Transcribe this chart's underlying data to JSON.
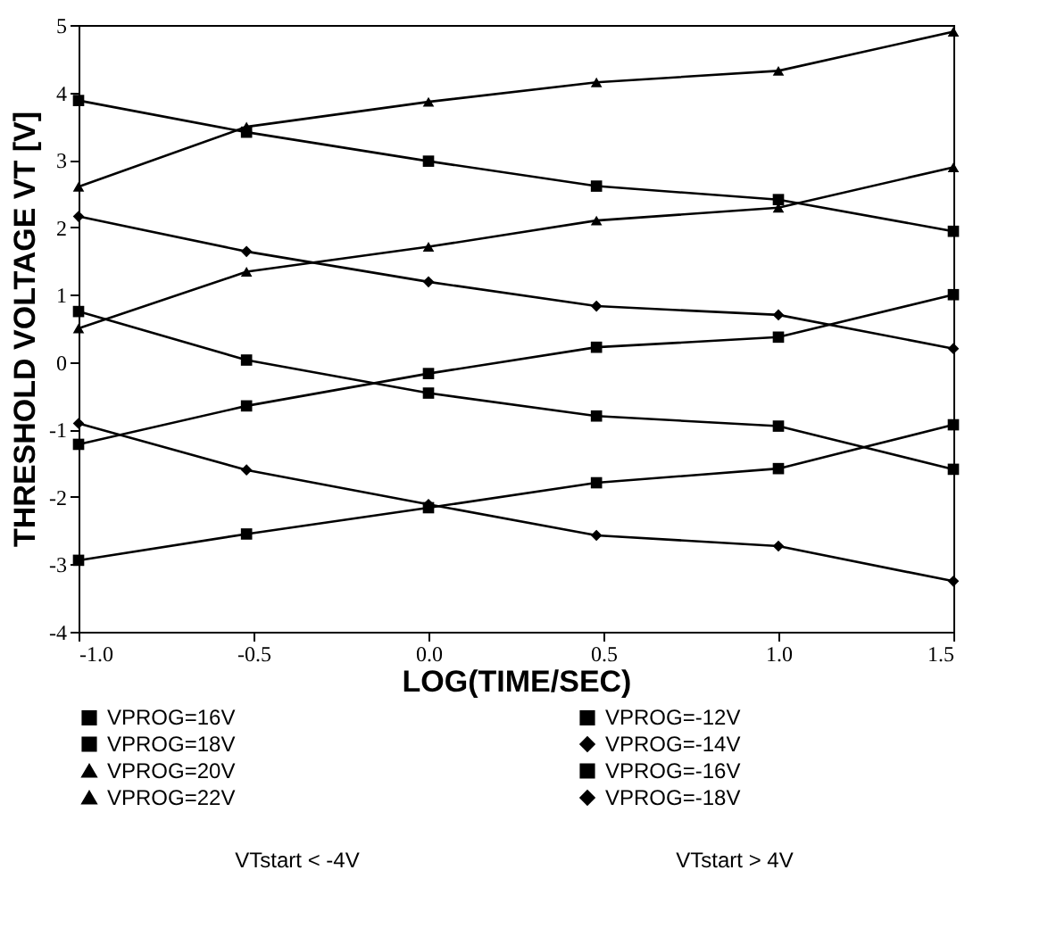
{
  "chart_data": {
    "type": "line",
    "xlabel": "LOG(TIME/SEC)",
    "ylabel": "THRESHOLD VOLTAGE VT  [V]",
    "x": [
      -1.0,
      -0.52,
      0.0,
      0.48,
      1.0,
      1.5
    ],
    "xlim": [
      -1.0,
      1.5
    ],
    "xticks": [
      {
        "value": -1.0,
        "label": "-1.0"
      },
      {
        "value": -0.5,
        "label": "-0.5"
      },
      {
        "value": 0,
        "label": "0.0"
      },
      {
        "value": 0.5,
        "label": "0.5"
      },
      {
        "value": 1,
        "label": "1.0"
      },
      {
        "value": 1.5,
        "label": "1.5"
      }
    ],
    "ylim": [
      -4,
      5
    ],
    "yticks": [
      -4,
      -3,
      -2,
      -1,
      0,
      1,
      2,
      3,
      4,
      5
    ],
    "grid": false,
    "legend": "bottom",
    "line_style": "solid",
    "series": [
      {
        "name": "VPROG=16V",
        "color": "#000000",
        "marker": "square",
        "values": [
          -2.94,
          -2.55,
          -2.16,
          -1.79,
          -1.58,
          -0.93
        ]
      },
      {
        "name": "VPROG=18V",
        "color": "#000000",
        "marker": "square",
        "values": [
          -1.22,
          -0.65,
          -0.17,
          0.22,
          0.37,
          1.0
        ]
      },
      {
        "name": "VPROG=20V",
        "color": "#000000",
        "marker": "triangle",
        "values": [
          0.5,
          1.34,
          1.71,
          2.1,
          2.29,
          2.89
        ]
      },
      {
        "name": "VPROG=22V",
        "color": "#000000",
        "marker": "triangle",
        "values": [
          2.6,
          3.49,
          3.86,
          4.15,
          4.32,
          4.9
        ]
      },
      {
        "name": "VPROG=-12V",
        "color": "#000000",
        "marker": "square",
        "values": [
          3.88,
          3.41,
          2.98,
          2.61,
          2.41,
          1.94
        ]
      },
      {
        "name": "VPROG=-14V",
        "color": "#000000",
        "marker": "diamond",
        "values": [
          2.16,
          1.64,
          1.19,
          0.83,
          0.7,
          0.2
        ]
      },
      {
        "name": "VPROG=-16V",
        "color": "#000000",
        "marker": "square",
        "values": [
          0.75,
          0.03,
          -0.46,
          -0.8,
          -0.95,
          -1.59
        ]
      },
      {
        "name": "VPROG=-18V",
        "color": "#000000",
        "marker": "diamond",
        "values": [
          -0.91,
          -1.6,
          -2.11,
          -2.57,
          -2.73,
          -3.25
        ]
      }
    ],
    "annotations": [
      "VTstart  <  -4V",
      "VTstart  >  4V"
    ]
  }
}
